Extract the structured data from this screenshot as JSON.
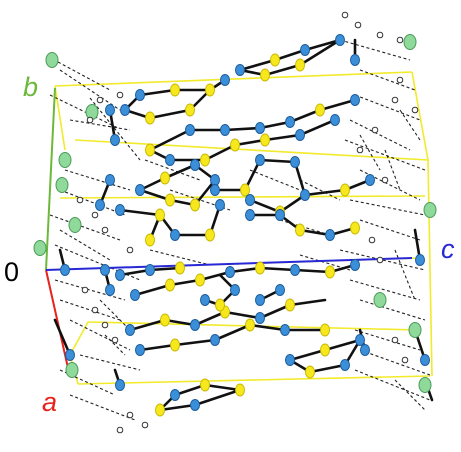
{
  "diagram": {
    "kind": "crystal-packing-diagram",
    "origin_label": "0",
    "axes": [
      {
        "label": "a",
        "color": "#e8211b"
      },
      {
        "label": "b",
        "color": "#6cb83a"
      },
      {
        "label": "c",
        "color": "#2828d8"
      }
    ],
    "colors": {
      "unit_cell": "#f2ea2a",
      "bond": "#111111",
      "hydrogen_bond": "#222222",
      "atom_sulfur": "#f7e81e",
      "atom_carbon": "#3b8fd9",
      "atom_halogen": "#8fd99a",
      "atom_hydrogen": "#ffffff"
    },
    "atom_types": [
      "sulfur",
      "carbon",
      "halogen",
      "hydrogen"
    ]
  }
}
